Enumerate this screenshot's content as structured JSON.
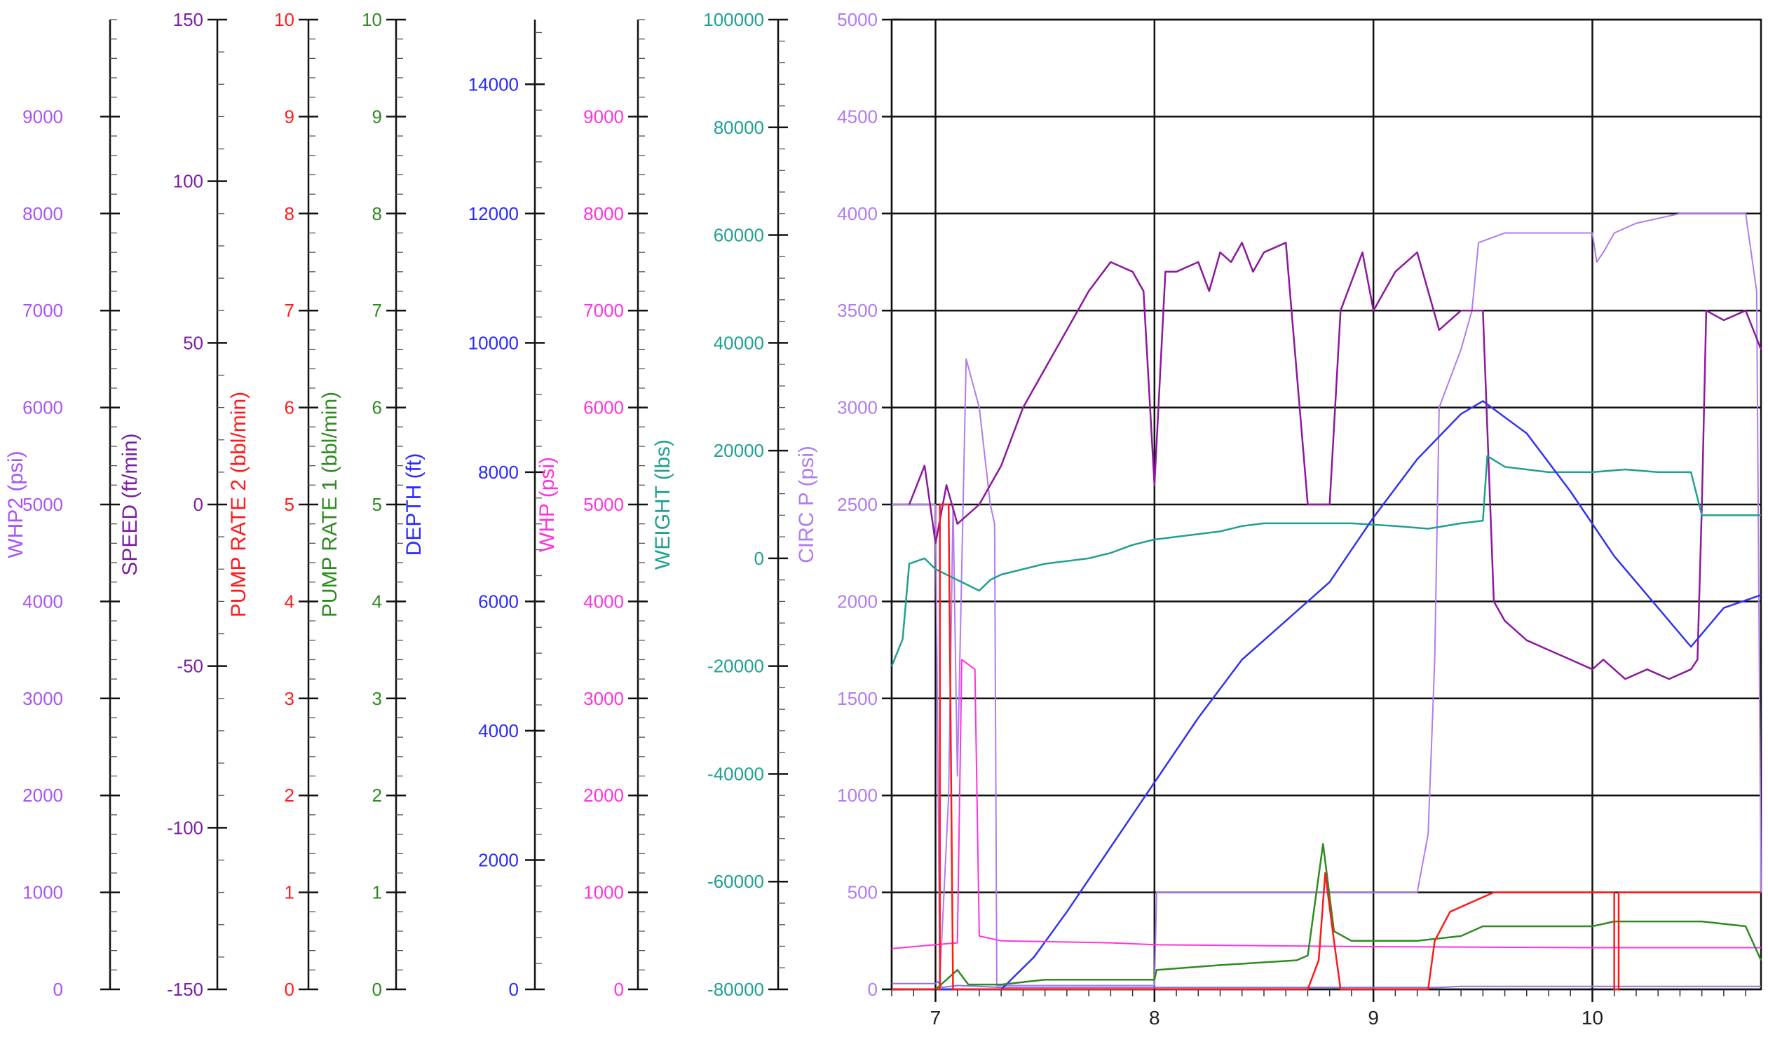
{
  "chart_data": {
    "type": "line",
    "x_axis": {
      "range": [
        6.8,
        10.77
      ],
      "ticks": [
        "7",
        "8",
        "9",
        "10"
      ],
      "grid": true
    },
    "axes": [
      {
        "key": "whp2",
        "label": "WHP2  (psi)",
        "color": "#a855f7",
        "min": 0,
        "max": 10000,
        "labels": [
          "0",
          "1000",
          "2000",
          "3000",
          "4000",
          "5000",
          "6000",
          "7000",
          "8000",
          "9000"
        ]
      },
      {
        "key": "speed",
        "label": "SPEED  (ft/min)",
        "color": "#7b1fa2",
        "min": -150,
        "max": 150,
        "labels": [
          "-150",
          "-100",
          "-50",
          "0",
          "50",
          "100",
          "150"
        ]
      },
      {
        "key": "pump2",
        "label": "PUMP RATE 2  (bbl/min)",
        "color": "#ff1a1a",
        "min": 0,
        "max": 10,
        "labels": [
          "0",
          "1",
          "2",
          "3",
          "4",
          "5",
          "6",
          "7",
          "8",
          "9",
          "10"
        ]
      },
      {
        "key": "pump1",
        "label": "PUMP RATE 1  (bbl/min)",
        "color": "#2e8b20",
        "min": 0,
        "max": 10,
        "labels": [
          "0",
          "1",
          "2",
          "3",
          "4",
          "5",
          "6",
          "7",
          "8",
          "9",
          "10"
        ]
      },
      {
        "key": "depth",
        "label": "DEPTH  (ft)",
        "color": "#2a2aff",
        "min": 0,
        "max": 15000,
        "labels": [
          "0",
          "2000",
          "4000",
          "6000",
          "8000",
          "10000",
          "12000",
          "14000"
        ]
      },
      {
        "key": "whp",
        "label": "WHP  (psi)",
        "color": "#ff33dd",
        "min": 0,
        "max": 10000,
        "labels": [
          "0",
          "1000",
          "2000",
          "3000",
          "4000",
          "5000",
          "6000",
          "7000",
          "8000",
          "9000"
        ]
      },
      {
        "key": "weight",
        "label": "WEIGHT  (lbs)",
        "color": "#20a090",
        "min": -80000,
        "max": 100000,
        "labels": [
          "-80000",
          "-60000",
          "-40000",
          "-20000",
          "0",
          "20000",
          "40000",
          "60000",
          "80000",
          "100000"
        ]
      },
      {
        "key": "circ",
        "label": "CIRC P  (psi)",
        "color": "#b07cf0",
        "min": 0,
        "max": 5000,
        "labels": [
          "0",
          "500",
          "1000",
          "1500",
          "2000",
          "2500",
          "3000",
          "3500",
          "4000",
          "4500",
          "5000"
        ]
      }
    ],
    "series": [
      {
        "axis": "circ",
        "color": "#b07cf0",
        "width": 2,
        "points": [
          [
            6.8,
            2500
          ],
          [
            6.9,
            2500
          ],
          [
            7.0,
            2500
          ],
          [
            7.02,
            50
          ],
          [
            7.06,
            1000
          ],
          [
            7.08,
            2500
          ],
          [
            7.1,
            1100
          ],
          [
            7.14,
            3250
          ],
          [
            7.2,
            3000
          ],
          [
            7.25,
            2500
          ],
          [
            7.27,
            2400
          ],
          [
            7.28,
            20
          ],
          [
            8.0,
            20
          ],
          [
            8.01,
            500
          ],
          [
            8.9,
            500
          ],
          [
            9.1,
            500
          ],
          [
            9.2,
            500
          ],
          [
            9.25,
            800
          ],
          [
            9.28,
            1700
          ],
          [
            9.3,
            3000
          ],
          [
            9.4,
            3300
          ],
          [
            9.45,
            3500
          ],
          [
            9.48,
            3850
          ],
          [
            9.6,
            3900
          ],
          [
            9.8,
            3900
          ],
          [
            10.0,
            3900
          ],
          [
            10.02,
            3750
          ],
          [
            10.05,
            3800
          ],
          [
            10.1,
            3900
          ],
          [
            10.2,
            3950
          ],
          [
            10.4,
            4000
          ],
          [
            10.6,
            4000
          ],
          [
            10.7,
            4000
          ],
          [
            10.75,
            3600
          ],
          [
            10.77,
            500
          ]
        ]
      },
      {
        "axis": "whp2",
        "color": "#9370db",
        "width": 2,
        "points": [
          [
            6.8,
            60
          ],
          [
            7.0,
            60
          ],
          [
            7.01,
            80
          ],
          [
            7.03,
            20
          ],
          [
            7.1,
            40
          ],
          [
            7.2,
            30
          ],
          [
            7.3,
            20
          ],
          [
            8.0,
            20
          ],
          [
            9.3,
            20
          ],
          [
            9.4,
            30
          ],
          [
            10.77,
            30
          ]
        ]
      },
      {
        "axis": "circ",
        "color": "#8b1a9b",
        "width": 2.5,
        "points": [
          [
            6.88,
            2500
          ],
          [
            6.95,
            2700
          ],
          [
            7.0,
            2300
          ],
          [
            7.05,
            2600
          ],
          [
            7.1,
            2400
          ],
          [
            7.15,
            2450
          ],
          [
            7.2,
            2500
          ],
          [
            7.3,
            2700
          ],
          [
            7.4,
            3000
          ],
          [
            7.5,
            3200
          ],
          [
            7.6,
            3400
          ],
          [
            7.7,
            3600
          ],
          [
            7.8,
            3750
          ],
          [
            7.9,
            3700
          ],
          [
            7.95,
            3600
          ],
          [
            8.0,
            2600
          ],
          [
            8.05,
            3700
          ],
          [
            8.1,
            3700
          ],
          [
            8.2,
            3750
          ],
          [
            8.25,
            3600
          ],
          [
            8.3,
            3800
          ],
          [
            8.35,
            3750
          ],
          [
            8.4,
            3850
          ],
          [
            8.45,
            3700
          ],
          [
            8.5,
            3800
          ],
          [
            8.6,
            3850
          ],
          [
            8.7,
            2500
          ],
          [
            8.8,
            2500
          ],
          [
            8.85,
            3500
          ],
          [
            8.95,
            3800
          ],
          [
            9.0,
            3500
          ],
          [
            9.1,
            3700
          ],
          [
            9.2,
            3800
          ],
          [
            9.3,
            3400
          ],
          [
            9.4,
            3500
          ],
          [
            9.5,
            3500
          ],
          [
            9.55,
            2000
          ],
          [
            9.6,
            1900
          ],
          [
            9.7,
            1800
          ],
          [
            9.8,
            1750
          ],
          [
            9.9,
            1700
          ],
          [
            10.0,
            1650
          ],
          [
            10.05,
            1700
          ],
          [
            10.15,
            1600
          ],
          [
            10.25,
            1650
          ],
          [
            10.35,
            1600
          ],
          [
            10.45,
            1650
          ],
          [
            10.48,
            1700
          ],
          [
            10.5,
            2500
          ],
          [
            10.52,
            3500
          ],
          [
            10.6,
            3450
          ],
          [
            10.7,
            3500
          ],
          [
            10.77,
            3300
          ]
        ]
      },
      {
        "axis": "weight",
        "color": "#20a090",
        "width": 2.5,
        "points": [
          [
            6.8,
            -20000
          ],
          [
            6.85,
            -15000
          ],
          [
            6.88,
            -1000
          ],
          [
            6.95,
            0
          ],
          [
            7.0,
            -2000
          ],
          [
            7.05,
            -3000
          ],
          [
            7.1,
            -4000
          ],
          [
            7.2,
            -6000
          ],
          [
            7.25,
            -4000
          ],
          [
            7.3,
            -3000
          ],
          [
            7.5,
            -1000
          ],
          [
            7.7,
            0
          ],
          [
            7.8,
            1000
          ],
          [
            7.9,
            2500
          ],
          [
            8.0,
            3500
          ],
          [
            8.1,
            4000
          ],
          [
            8.3,
            5000
          ],
          [
            8.4,
            6000
          ],
          [
            8.5,
            6500
          ],
          [
            8.7,
            6500
          ],
          [
            8.9,
            6500
          ],
          [
            9.1,
            6000
          ],
          [
            9.25,
            5500
          ],
          [
            9.4,
            6500
          ],
          [
            9.5,
            7000
          ],
          [
            9.52,
            19000
          ],
          [
            9.6,
            17000
          ],
          [
            9.8,
            16000
          ],
          [
            10.0,
            16000
          ],
          [
            10.15,
            16500
          ],
          [
            10.3,
            16000
          ],
          [
            10.45,
            16000
          ],
          [
            10.5,
            8000
          ],
          [
            10.6,
            8000
          ],
          [
            10.77,
            8000
          ]
        ]
      },
      {
        "axis": "depth",
        "color": "#3333ee",
        "width": 2.5,
        "points": [
          [
            7.0,
            0
          ],
          [
            7.3,
            0
          ],
          [
            7.45,
            500
          ],
          [
            7.6,
            1200
          ],
          [
            7.8,
            2200
          ],
          [
            8.0,
            3200
          ],
          [
            8.2,
            4200
          ],
          [
            8.4,
            5100
          ],
          [
            8.6,
            5700
          ],
          [
            8.8,
            6300
          ],
          [
            8.9,
            6800
          ],
          [
            9.0,
            7300
          ],
          [
            9.2,
            8200
          ],
          [
            9.4,
            8900
          ],
          [
            9.5,
            9100
          ],
          [
            9.7,
            8600
          ],
          [
            9.9,
            7700
          ],
          [
            10.1,
            6700
          ],
          [
            10.3,
            5900
          ],
          [
            10.45,
            5300
          ],
          [
            10.6,
            5900
          ],
          [
            10.77,
            6100
          ]
        ]
      },
      {
        "axis": "whp",
        "color": "#ff33dd",
        "width": 2,
        "points": [
          [
            6.8,
            420
          ],
          [
            7.0,
            460
          ],
          [
            7.1,
            480
          ],
          [
            7.12,
            3400
          ],
          [
            7.18,
            3300
          ],
          [
            7.2,
            550
          ],
          [
            7.3,
            500
          ],
          [
            7.8,
            480
          ],
          [
            8.0,
            460
          ],
          [
            9.0,
            440
          ],
          [
            10.0,
            430
          ],
          [
            10.77,
            430
          ]
        ]
      },
      {
        "axis": "pump1",
        "color": "#2e8b20",
        "width": 2.5,
        "points": [
          [
            7.0,
            0
          ],
          [
            7.05,
            0.1
          ],
          [
            7.1,
            0.2
          ],
          [
            7.15,
            0.05
          ],
          [
            7.3,
            0.05
          ],
          [
            7.5,
            0.1
          ],
          [
            8.0,
            0.1
          ],
          [
            8.01,
            0.2
          ],
          [
            8.3,
            0.25
          ],
          [
            8.65,
            0.3
          ],
          [
            8.7,
            0.35
          ],
          [
            8.77,
            1.5
          ],
          [
            8.82,
            0.6
          ],
          [
            8.9,
            0.5
          ],
          [
            9.2,
            0.5
          ],
          [
            9.4,
            0.55
          ],
          [
            9.5,
            0.65
          ],
          [
            9.7,
            0.65
          ],
          [
            10.0,
            0.65
          ],
          [
            10.1,
            0.7
          ],
          [
            10.2,
            0.7
          ],
          [
            10.5,
            0.7
          ],
          [
            10.7,
            0.65
          ],
          [
            10.77,
            0.3
          ]
        ]
      },
      {
        "axis": "pump2",
        "color": "#ff1a1a",
        "width": 2.5,
        "points": [
          [
            6.8,
            0
          ],
          [
            7.02,
            0
          ],
          [
            7.02,
            5
          ],
          [
            7.06,
            5
          ],
          [
            7.08,
            0
          ],
          [
            8.7,
            0
          ],
          [
            8.75,
            0.3
          ],
          [
            8.78,
            1.2
          ],
          [
            8.82,
            0.5
          ],
          [
            8.85,
            0
          ],
          [
            9.25,
            0
          ],
          [
            9.28,
            0.5
          ],
          [
            9.35,
            0.8
          ],
          [
            9.45,
            0.9
          ],
          [
            9.55,
            1.0
          ],
          [
            10.1,
            1.0
          ],
          [
            10.1,
            0
          ],
          [
            10.12,
            0
          ],
          [
            10.12,
            1.0
          ],
          [
            10.77,
            1.0
          ]
        ]
      }
    ]
  }
}
